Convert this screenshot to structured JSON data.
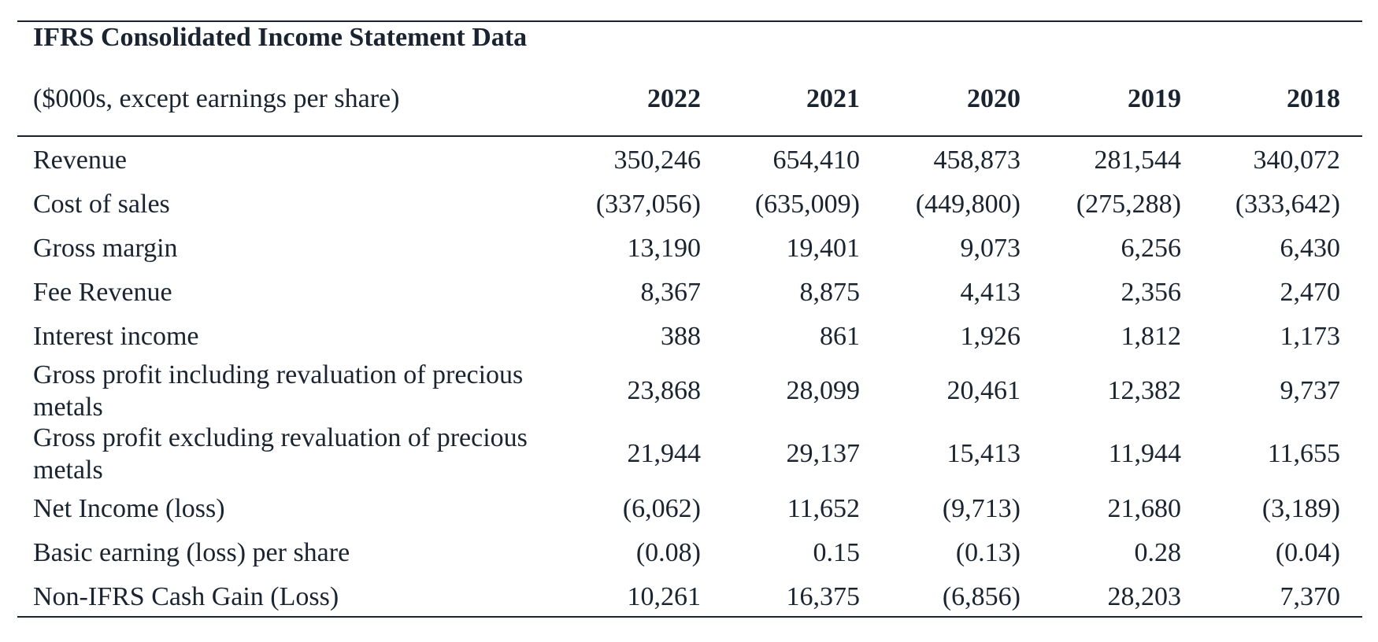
{
  "table": {
    "title": "IFRS Consolidated Income Statement Data",
    "subtitle": "($000s, except earnings per share)",
    "years": [
      "2022",
      "2021",
      "2020",
      "2019",
      "2018"
    ],
    "rows": [
      {
        "label": "Revenue",
        "values": [
          "350,246",
          "654,410",
          "458,873",
          "281,544",
          "340,072"
        ]
      },
      {
        "label": "Cost of sales",
        "values": [
          "(337,056)",
          "(635,009)",
          "(449,800)",
          "(275,288)",
          "(333,642)"
        ]
      },
      {
        "label": "Gross margin",
        "values": [
          "13,190",
          "19,401",
          "9,073",
          "6,256",
          "6,430"
        ]
      },
      {
        "label": "Fee Revenue",
        "values": [
          "8,367",
          "8,875",
          "4,413",
          "2,356",
          "2,470"
        ]
      },
      {
        "label": "Interest income",
        "values": [
          "388",
          "861",
          "1,926",
          "1,812",
          "1,173"
        ]
      },
      {
        "label_line1": "Gross profit including revaluation of precious",
        "label_line2": "metals",
        "values": [
          "23,868",
          "28,099",
          "20,461",
          "12,382",
          "9,737"
        ]
      },
      {
        "label_line1": "Gross profit excluding revaluation of precious",
        "label_line2": "metals",
        "values": [
          "21,944",
          "29,137",
          "15,413",
          "11,944",
          "11,655"
        ]
      },
      {
        "label": "Net Income (loss)",
        "values": [
          "(6,062)",
          "11,652",
          "(9,713)",
          "21,680",
          "(3,189)"
        ]
      },
      {
        "label": "Basic earning (loss) per share",
        "values": [
          "(0.08)",
          "0.15",
          "(0.13)",
          "0.28",
          "(0.04)"
        ]
      },
      {
        "label": "Non-IFRS Cash Gain (Loss)",
        "values": [
          "10,261",
          "16,375",
          "(6,856)",
          "28,203",
          "7,370"
        ]
      }
    ]
  }
}
